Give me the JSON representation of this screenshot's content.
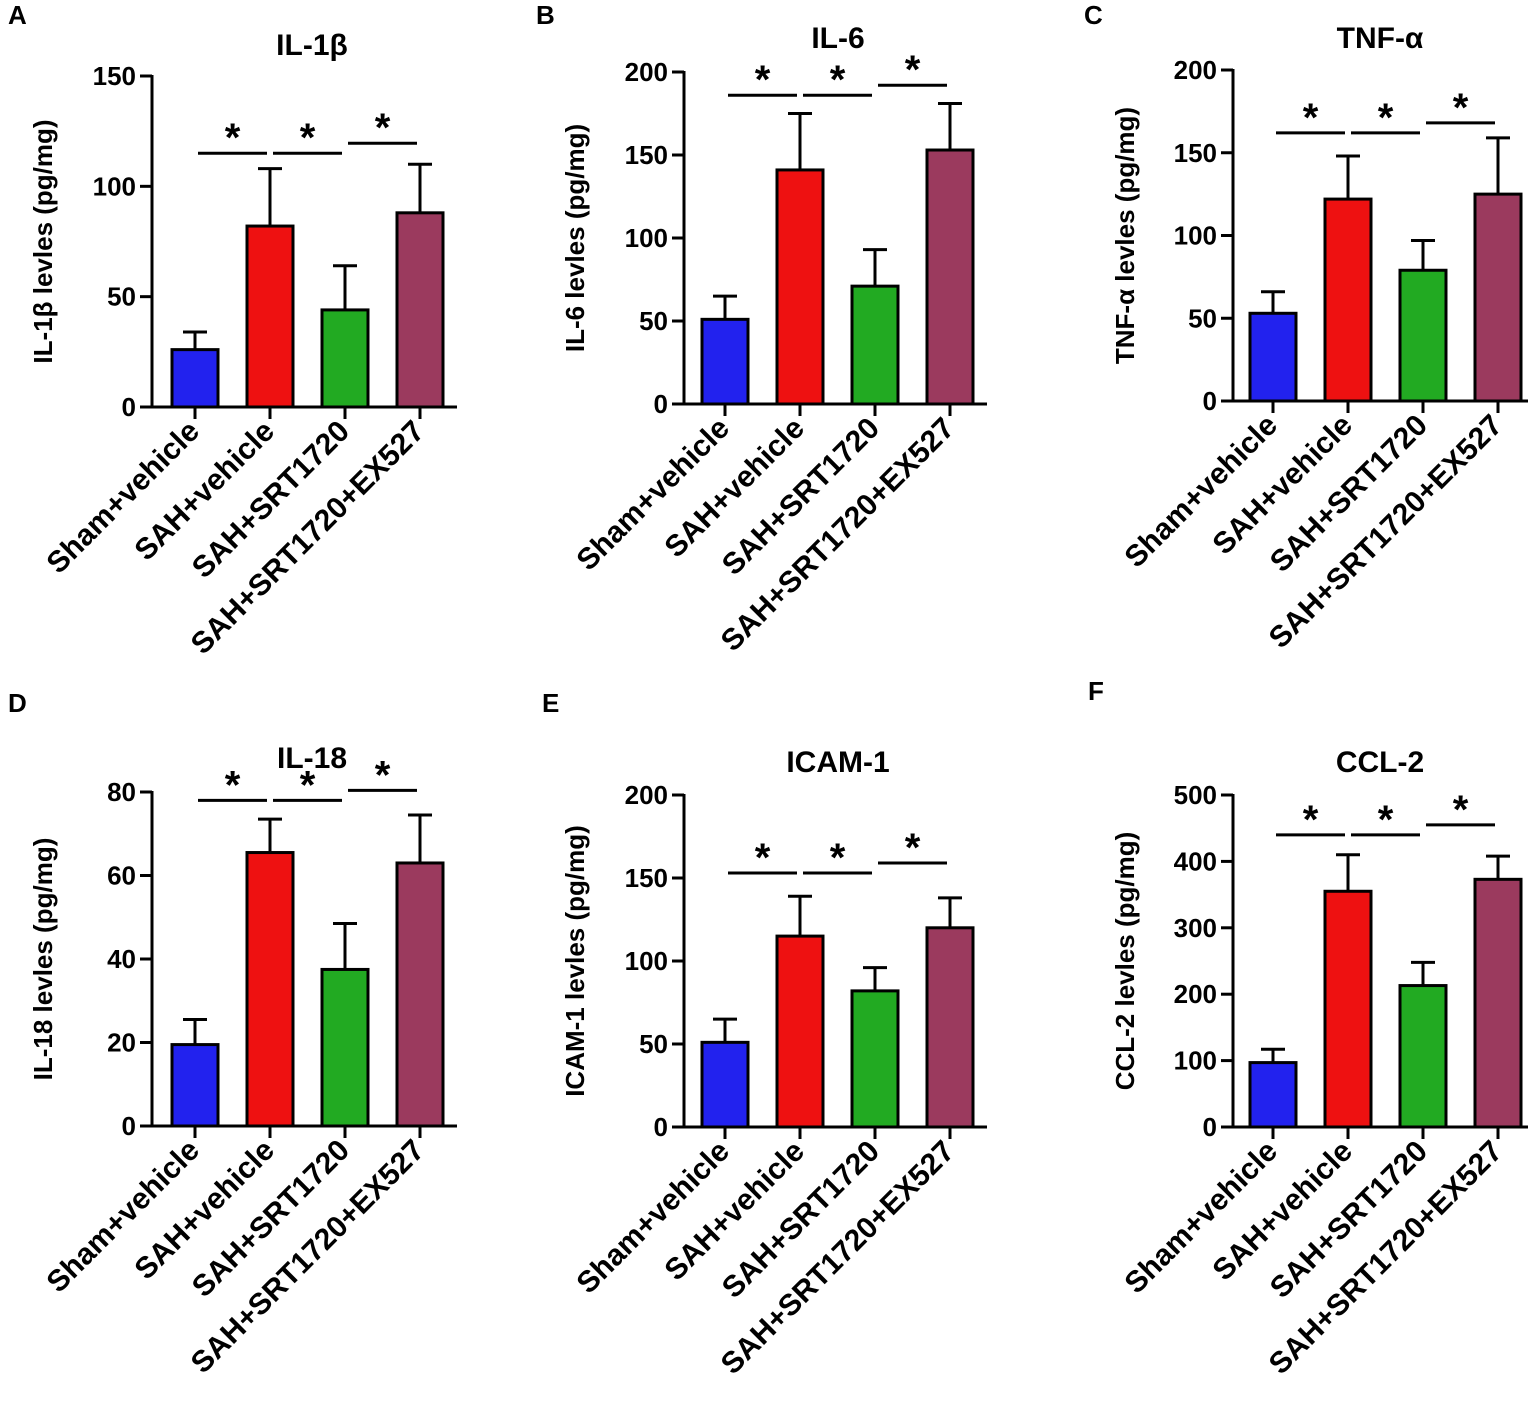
{
  "figure": {
    "categories": [
      "Sham+vehicle",
      "SAH+vehicle",
      "SAH+SRT1720",
      "SAH+SRT1720+EX527"
    ],
    "bar_colors": [
      "#2222ee",
      "#ee1111",
      "#22aa22",
      "#9b3a5e"
    ],
    "significance_symbol": "*"
  },
  "chart_data": [
    {
      "type": "bar",
      "panel": "A",
      "title": "IL-1β",
      "ylabel": "IL-1β levles  (pg/mg)",
      "xlabel": "",
      "categories": [
        "Sham+vehicle",
        "SAH+vehicle",
        "SAH+SRT1720",
        "SAH+SRT1720+EX527"
      ],
      "values": [
        26,
        82,
        44,
        88
      ],
      "errors": [
        8,
        26,
        20,
        22
      ],
      "ylim": [
        0,
        150
      ],
      "yticks": [
        0,
        50,
        100,
        150
      ],
      "tick_labels": [
        "0",
        "50",
        "100",
        "150"
      ],
      "significance": [
        {
          "from": 0,
          "to": 1,
          "label": "*"
        },
        {
          "from": 1,
          "to": 2,
          "label": "*"
        },
        {
          "from": 2,
          "to": 3,
          "label": "*"
        }
      ],
      "sig_level": 115
    },
    {
      "type": "bar",
      "panel": "B",
      "title": "IL-6",
      "ylabel": "IL-6 levles  (pg/mg)",
      "xlabel": "",
      "categories": [
        "Sham+vehicle",
        "SAH+vehicle",
        "SAH+SRT1720",
        "SAH+SRT1720+EX527"
      ],
      "values": [
        51,
        141,
        71,
        153
      ],
      "errors": [
        14,
        34,
        22,
        28
      ],
      "ylim": [
        0,
        200
      ],
      "yticks": [
        0,
        50,
        100,
        150,
        200
      ],
      "tick_labels": [
        "0",
        "50",
        "100",
        "150",
        "200"
      ],
      "significance": [
        {
          "from": 0,
          "to": 1,
          "label": "*"
        },
        {
          "from": 1,
          "to": 2,
          "label": "*"
        },
        {
          "from": 2,
          "to": 3,
          "label": "*"
        }
      ],
      "sig_level": 186
    },
    {
      "type": "bar",
      "panel": "C",
      "title": "TNF-α",
      "ylabel": "TNF-α levles  (pg/mg)",
      "xlabel": "",
      "categories": [
        "Sham+vehicle",
        "SAH+vehicle",
        "SAH+SRT1720",
        "SAH+SRT1720+EX527"
      ],
      "values": [
        53,
        122,
        79,
        125
      ],
      "errors": [
        13,
        26,
        18,
        34
      ],
      "ylim": [
        0,
        200
      ],
      "yticks": [
        0,
        50,
        100,
        150,
        200
      ],
      "tick_labels": [
        "0",
        "50",
        "100",
        "150",
        "200"
      ],
      "significance": [
        {
          "from": 0,
          "to": 1,
          "label": "*"
        },
        {
          "from": 1,
          "to": 2,
          "label": "*"
        },
        {
          "from": 2,
          "to": 3,
          "label": "*"
        }
      ],
      "sig_level": 162
    },
    {
      "type": "bar",
      "panel": "D",
      "title": "IL-18",
      "ylabel": "IL-18 levles  (pg/mg)",
      "xlabel": "",
      "categories": [
        "Sham+vehicle",
        "SAH+vehicle",
        "SAH+SRT1720",
        "SAH+SRT1720+EX527"
      ],
      "values": [
        19.5,
        65.5,
        37.5,
        63
      ],
      "errors": [
        6,
        8,
        11,
        11.5
      ],
      "ylim": [
        0,
        80
      ],
      "yticks": [
        0,
        20,
        40,
        60,
        80
      ],
      "tick_labels": [
        "0",
        "20",
        "40",
        "60",
        "80"
      ],
      "significance": [
        {
          "from": 0,
          "to": 1,
          "label": "*"
        },
        {
          "from": 1,
          "to": 2,
          "label": "*"
        },
        {
          "from": 2,
          "to": 3,
          "label": "*"
        }
      ],
      "sig_level": 78
    },
    {
      "type": "bar",
      "panel": "E",
      "title": "ICAM-1",
      "ylabel": "ICAM-1 levles  (pg/mg)",
      "xlabel": "",
      "categories": [
        "Sham+vehicle",
        "SAH+vehicle",
        "SAH+SRT1720",
        "SAH+SRT1720+EX527"
      ],
      "values": [
        51,
        115,
        82,
        120
      ],
      "errors": [
        14,
        24,
        14,
        18
      ],
      "ylim": [
        0,
        200
      ],
      "yticks": [
        0,
        50,
        100,
        150,
        200
      ],
      "tick_labels": [
        "0",
        "50",
        "100",
        "150",
        "200"
      ],
      "significance": [
        {
          "from": 0,
          "to": 1,
          "label": "*"
        },
        {
          "from": 1,
          "to": 2,
          "label": "*"
        },
        {
          "from": 2,
          "to": 3,
          "label": "*"
        }
      ],
      "sig_level": 153
    },
    {
      "type": "bar",
      "panel": "F",
      "title": "CCL-2",
      "ylabel": "CCL-2 levles  (pg/mg)",
      "xlabel": "",
      "categories": [
        "Sham+vehicle",
        "SAH+vehicle",
        "SAH+SRT1720",
        "SAH+SRT1720+EX527"
      ],
      "values": [
        97,
        355,
        213,
        373
      ],
      "errors": [
        20,
        55,
        35,
        35
      ],
      "ylim": [
        0,
        500
      ],
      "yticks": [
        0,
        100,
        200,
        300,
        400,
        500
      ],
      "tick_labels": [
        "0",
        "100",
        "200",
        "300",
        "400",
        "500"
      ],
      "significance": [
        {
          "from": 0,
          "to": 1,
          "label": "*"
        },
        {
          "from": 1,
          "to": 2,
          "label": "*"
        },
        {
          "from": 2,
          "to": 3,
          "label": "*"
        }
      ],
      "sig_level": 440
    }
  ]
}
